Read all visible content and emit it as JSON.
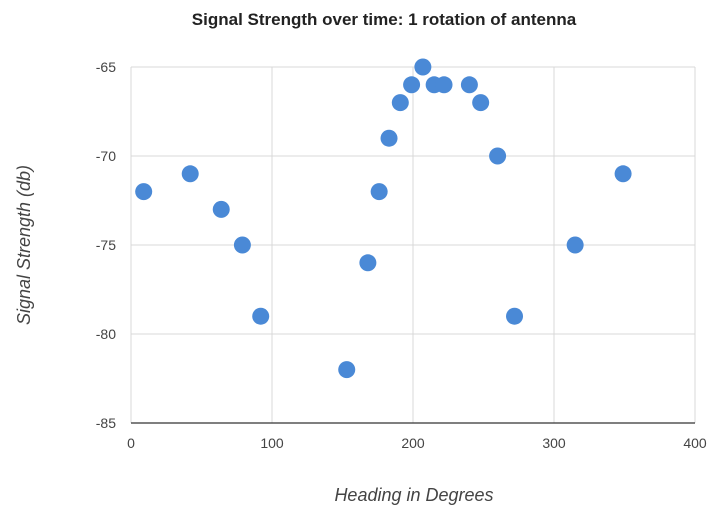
{
  "chart_data": {
    "type": "scatter",
    "title": "Signal Strength over time: 1 rotation of antenna",
    "xlabel": "Heading in Degrees",
    "ylabel": "Signal Strength (db)",
    "xlim": [
      0,
      400
    ],
    "ylim": [
      -85,
      -65
    ],
    "xticks": [
      "0",
      "100",
      "200",
      "300",
      "400"
    ],
    "yticks": [
      "-65",
      "-70",
      "-75",
      "-80",
      "-85"
    ],
    "xtick_values": [
      0,
      100,
      200,
      300,
      400
    ],
    "ytick_values": [
      -65,
      -70,
      -75,
      -80,
      -85
    ],
    "grid": true,
    "legend": "none",
    "color": "#4a89d6",
    "series": [
      {
        "points": [
          {
            "x": 9,
            "y": -72
          },
          {
            "x": 42,
            "y": -71
          },
          {
            "x": 64,
            "y": -73
          },
          {
            "x": 79,
            "y": -75
          },
          {
            "x": 92,
            "y": -79
          },
          {
            "x": 153,
            "y": -82
          },
          {
            "x": 168,
            "y": -76
          },
          {
            "x": 176,
            "y": -72
          },
          {
            "x": 183,
            "y": -69
          },
          {
            "x": 191,
            "y": -67
          },
          {
            "x": 199,
            "y": -66
          },
          {
            "x": 207,
            "y": -65
          },
          {
            "x": 215,
            "y": -66
          },
          {
            "x": 222,
            "y": -66
          },
          {
            "x": 240,
            "y": -66
          },
          {
            "x": 248,
            "y": -67
          },
          {
            "x": 260,
            "y": -70
          },
          {
            "x": 272,
            "y": -79
          },
          {
            "x": 315,
            "y": -75
          },
          {
            "x": 349,
            "y": -71
          }
        ]
      }
    ]
  }
}
